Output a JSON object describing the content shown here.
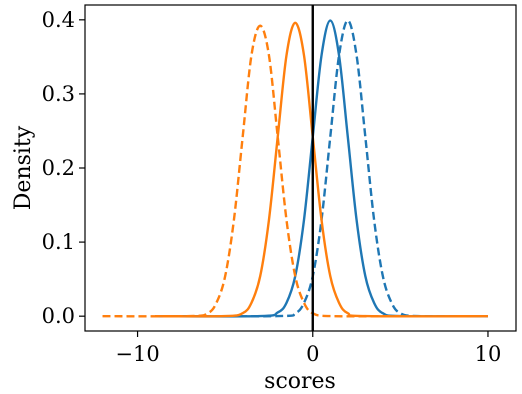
{
  "chart_data": {
    "type": "line",
    "title": "",
    "xlabel": "scores",
    "ylabel": "Density",
    "xlim": [
      -13,
      11.6
    ],
    "ylim": [
      -0.02,
      0.42
    ],
    "xticks": [
      -10,
      0,
      10
    ],
    "xtick_labels": [
      "−10",
      "0",
      "10"
    ],
    "yticks": [
      0.0,
      0.1,
      0.2,
      0.3,
      0.4
    ],
    "ytick_labels": [
      "0.0",
      "0.1",
      "0.2",
      "0.3",
      "0.4"
    ],
    "grid": false,
    "legend": "none",
    "vertical_line": {
      "x": 0,
      "color": "#000000"
    },
    "series": [
      {
        "color": "#1f77b4",
        "style": "solid",
        "x": [
          -9,
          -3,
          -2,
          -1.5,
          -1,
          -0.5,
          0,
          0.5,
          1,
          1.5,
          2,
          2.5,
          3,
          3.5,
          4,
          5,
          10
        ],
        "y": [
          0,
          0.0001,
          0.005,
          0.018,
          0.054,
          0.13,
          0.242,
          0.352,
          0.399,
          0.352,
          0.242,
          0.13,
          0.054,
          0.018,
          0.004,
          0.0001,
          0
        ]
      },
      {
        "color": "#1f77b4",
        "style": "dashed",
        "x": [
          -9,
          -2,
          -1,
          -0.5,
          0,
          0.5,
          1,
          1.5,
          2,
          2.5,
          3,
          3.5,
          4,
          4.5,
          5,
          6,
          10
        ],
        "y": [
          0,
          0.0001,
          0.004,
          0.018,
          0.054,
          0.13,
          0.242,
          0.352,
          0.399,
          0.352,
          0.242,
          0.13,
          0.054,
          0.018,
          0.004,
          0.0001,
          0
        ]
      },
      {
        "color": "#ff7f0e",
        "style": "solid",
        "x": [
          -9,
          -5,
          -4,
          -3.5,
          -3,
          -2.5,
          -2,
          -1.5,
          -1,
          -0.5,
          0,
          0.5,
          1,
          1.5,
          2,
          3,
          10
        ],
        "y": [
          0,
          0.0001,
          0.004,
          0.018,
          0.054,
          0.13,
          0.242,
          0.352,
          0.396,
          0.352,
          0.242,
          0.13,
          0.054,
          0.018,
          0.004,
          0.0001,
          0
        ]
      },
      {
        "color": "#ff7f0e",
        "style": "dashed",
        "x": [
          -12,
          -7,
          -6,
          -5.5,
          -5,
          -4.5,
          -4,
          -3.5,
          -3,
          -2.5,
          -2,
          -1.5,
          -1,
          -0.5,
          0,
          1,
          5
        ],
        "y": [
          0,
          0.0001,
          0.004,
          0.018,
          0.054,
          0.13,
          0.242,
          0.352,
          0.392,
          0.352,
          0.242,
          0.13,
          0.054,
          0.018,
          0.004,
          0.0001,
          0
        ]
      }
    ]
  }
}
